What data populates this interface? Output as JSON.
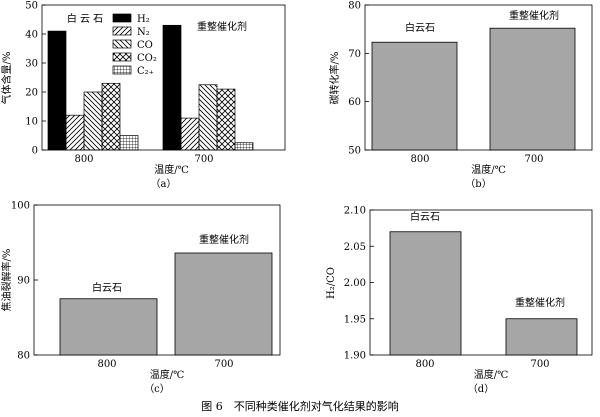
{
  "caption": "图 6　不同种类催化剂对气化结果的影响",
  "chart_data": [
    {
      "id": "a",
      "type": "bar",
      "sublabel": "（a）",
      "xlabel": "温度/℃",
      "ylabel": "气体含量/%",
      "ylim": [
        0,
        50
      ],
      "yticks": [
        0,
        10,
        20,
        30,
        40,
        50
      ],
      "categories": [
        "800",
        "700"
      ],
      "group_labels": [
        "白 云 石",
        "重整催化剂"
      ],
      "legend_position": "top-center",
      "series": [
        {
          "name": "H₂",
          "values": [
            41,
            43
          ],
          "pattern": "solid"
        },
        {
          "name": "N₂",
          "values": [
            12,
            11
          ],
          "pattern": "diag-fwd"
        },
        {
          "name": "CO",
          "values": [
            20,
            22.5
          ],
          "pattern": "diag-back"
        },
        {
          "name": "CO₂",
          "values": [
            23,
            21
          ],
          "pattern": "cross"
        },
        {
          "name": "C₂₊",
          "values": [
            5,
            2.5
          ],
          "pattern": "grid"
        }
      ]
    },
    {
      "id": "b",
      "type": "bar",
      "sublabel": "（b）",
      "xlabel": "温度/℃",
      "ylabel": "碳转化率/%",
      "ylim": [
        50,
        80
      ],
      "yticks": [
        50,
        60,
        70,
        80
      ],
      "categories": [
        "800",
        "700"
      ],
      "values": [
        72.3,
        75.2
      ],
      "annotations": [
        "白云石",
        "重整催化剂"
      ]
    },
    {
      "id": "c",
      "type": "bar",
      "sublabel": "（c）",
      "xlabel": "温度/℃",
      "ylabel": "焦油裂解率/%",
      "ylim": [
        80,
        100
      ],
      "yticks": [
        80,
        90,
        100
      ],
      "categories": [
        "800",
        "700"
      ],
      "values": [
        87.5,
        93.6
      ],
      "annotations": [
        "白云石",
        "重整催化剂"
      ]
    },
    {
      "id": "d",
      "type": "bar",
      "sublabel": "（d）",
      "xlabel": "温度/℃",
      "ylabel": "H₂/CO",
      "ylim": [
        1.9,
        2.1
      ],
      "yticks": [
        "1.90",
        "1.95",
        "2.00",
        "2.05",
        "2.10"
      ],
      "categories": [
        "800",
        "700"
      ],
      "values": [
        2.07,
        1.95
      ],
      "annotations": [
        "白云石",
        "重整催化剂"
      ]
    }
  ]
}
